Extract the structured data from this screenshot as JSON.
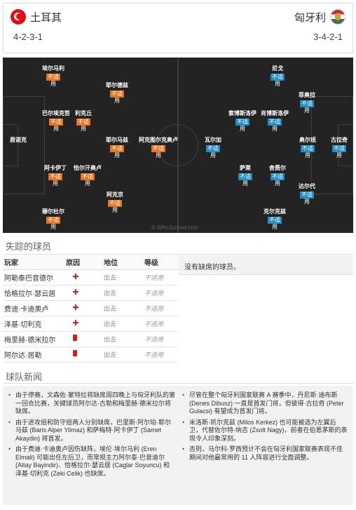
{
  "header": {
    "home": {
      "name": "土耳其",
      "formation": "4-2-3-1"
    },
    "away": {
      "name": "匈牙利",
      "formation": "3-4-2-1"
    }
  },
  "pitch": {
    "watermark": "© WhoScored.com",
    "home_players": [
      {
        "name": "埃尔马利",
        "tag": "不适",
        "status": "用"
      },
      {
        "name": "耶尔德兹",
        "tag": "不适",
        "status": "用"
      },
      {
        "name": "巴尔埃克哲",
        "tag": "不适",
        "status": "用"
      },
      {
        "name": "利克丘",
        "tag": "不适",
        "status": "用"
      },
      {
        "name": "居诺克",
        "tag": "",
        "status": ""
      },
      {
        "name": "耶尔马兹",
        "tag": "不适",
        "status": "用"
      },
      {
        "name": "阿克图尔克奥卢",
        "tag": "不适",
        "status": "用"
      },
      {
        "name": "阿卡伊丁",
        "tag": "不适",
        "status": "用"
      },
      {
        "name": "恰尔汗奥卢",
        "tag": "不适",
        "status": "用"
      },
      {
        "name": "阿克京",
        "tag": "不适",
        "status": "用"
      },
      {
        "name": "穆尔杜尔",
        "tag": "不适",
        "status": "用"
      }
    ],
    "away_players": [
      {
        "name": "尼戈",
        "tag": "不适",
        "status": "用"
      },
      {
        "name": "菲奥拉",
        "tag": "不适",
        "status": "用"
      },
      {
        "name": "索博斯洛伊",
        "tag": "不适",
        "status": "用"
      },
      {
        "name": "肖博斯洛伊",
        "tag": "不适",
        "status": "用"
      },
      {
        "name": "瓦尔加",
        "tag": "不适",
        "status": "用"
      },
      {
        "name": "奥尔班",
        "tag": "不适",
        "status": "用"
      },
      {
        "name": "古拉奇",
        "tag": "不适",
        "status": "用"
      },
      {
        "name": "萨莱",
        "tag": "不适",
        "status": "用"
      },
      {
        "name": "舍费尔",
        "tag": "不适",
        "status": "用"
      },
      {
        "name": "达尔代",
        "tag": "不适",
        "status": "用"
      },
      {
        "name": "克尔克兹",
        "tag": "不适",
        "status": "用"
      }
    ]
  },
  "missing": {
    "title": "失踪的球员",
    "columns": [
      "玩家",
      "原因",
      "地位",
      "等级"
    ],
    "rows": [
      {
        "player": "阿勒泰巴音德尔",
        "reason": "injury",
        "position": "出去",
        "status": "不适用"
      },
      {
        "player": "恰格拉尔·瑟云居",
        "reason": "injury",
        "position": "出去",
        "status": "不适用"
      },
      {
        "player": "费迪·卡迪奥卢",
        "reason": "injury",
        "position": "出去",
        "status": "不适用"
      },
      {
        "player": "泽基·切利克",
        "reason": "injury",
        "position": "出去",
        "status": "不适用"
      },
      {
        "player": "梅里赫·德米拉尔",
        "reason": "red-card",
        "position": "出去",
        "status": "不适用"
      },
      {
        "player": "阿尔达·居勒",
        "reason": "red-card",
        "position": "出去",
        "status": "不适用"
      }
    ],
    "away_text": "没有缺席的球员。"
  },
  "news": {
    "title": "球队新闻",
    "left": [
      "由于停赛，文森佐·蒙特拉将缺席周四晚上与匈牙利队的第一回合比赛，关键球员阿尔达·古勒和梅里赫·德米拉尔将缺席。",
      "由于进攻组和防守组两人分别缺席，巴里斯·阿尔珀·耶尔马兹 (Baris Alper Yilmaz) 和萨梅特·阿卡伊丁 (Samet Akaydin) 将首发。",
      "由于费迪·卡迪奥卢因伤缺阵，埃伦·埃尔马利 (Eren Elmali) 可能出任左后卫，而常规主力阿尔泰·巴音迪尔 (Altay Bayindir)、恰格拉尔·瑟云居 (Caglar Soyuncu) 和泽基·切利克 (Zeki Celik) 也缺席。"
    ],
    "right": [
      "尽管在整个匈牙利国家联赛 A 赛季中，丹尼斯·迪布斯 (Denes Dibusz) 一直是首发门将，但彼得·古拉奇 (Peter Gulacsi) 有望成为首发门将。",
      "米洛斯·凯尔克兹 (Milos Kerkez) 也可能被选为左翼后卫，代替佐尔特·纳吉 (Zsolt Nagy)，前者在伯恩茅斯的表现令人印象深刻。",
      "否则，马尔科·罗西预计不会在匈牙利国家联赛表现不佳期间对他最常用的 11 人阵容进行全面调整。"
    ]
  }
}
